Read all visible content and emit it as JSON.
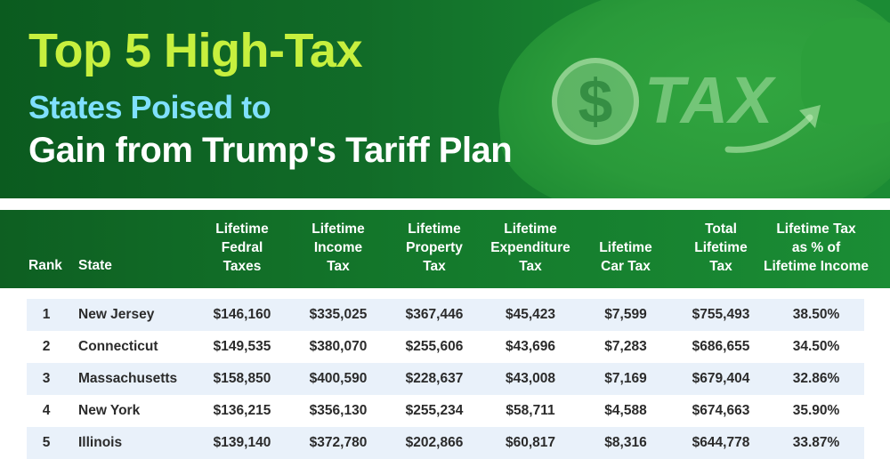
{
  "banner": {
    "title_line1": "Top 5 High-Tax",
    "title_line2": "States Poised to",
    "title_line3": "Gain from Trump's Tariff Plan",
    "graphic_symbol": "$",
    "graphic_word": "TAX",
    "colors": {
      "title1": "#c7f03e",
      "title2": "#7fe0ff",
      "title3": "#ffffff",
      "banner_bg": "#116b28"
    }
  },
  "table": {
    "headers": [
      "Rank",
      "State",
      "Lifetime\nFedral\nTaxes",
      "Lifetime\nIncome\nTax",
      "Lifetime\nProperty\nTax",
      "Lifetime\nExpenditure\nTax",
      "Lifetime\nCar Tax",
      "Total\nLifetime\nTax",
      "Lifetime Tax\nas % of\nLifetime Income"
    ],
    "rows": [
      [
        "1",
        "New Jersey",
        "$146,160",
        "$335,025",
        "$367,446",
        "$45,423",
        "$7,599",
        "$755,493",
        "38.50%"
      ],
      [
        "2",
        "Connecticut",
        "$149,535",
        "$380,070",
        "$255,606",
        "$43,696",
        "$7,283",
        "$686,655",
        "34.50%"
      ],
      [
        "3",
        "Massachusetts",
        "$158,850",
        "$400,590",
        "$228,637",
        "$43,008",
        "$7,169",
        "$679,404",
        "32.86%"
      ],
      [
        "4",
        "New York",
        "$136,215",
        "$356,130",
        "$255,234",
        "$58,711",
        "$4,588",
        "$674,663",
        "35.90%"
      ],
      [
        "5",
        "Illinois",
        "$139,140",
        "$372,780",
        "$202,866",
        "$60,817",
        "$8,316",
        "$644,778",
        "33.87%"
      ]
    ],
    "colors": {
      "header_bg": "#147a2c",
      "row_shade": "#e9f1fa"
    }
  }
}
